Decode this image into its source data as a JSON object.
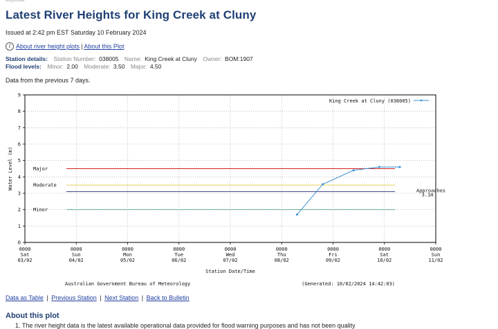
{
  "product_id": "IDQ65398",
  "title": "Latest River Heights for King Creek at Cluny",
  "issued": "Issued at 2:42 pm EST Saturday 10 February 2024",
  "top_links": {
    "about_heights": "About river height plots",
    "about_plot": "About this Plot",
    "separator": "|"
  },
  "station": {
    "heading": "Station details:",
    "number_label": "Station Number:",
    "number": "038005",
    "name_label": "Name:",
    "name": "King Creek at Cluny",
    "owner_label": "Owner:",
    "owner": "BOM:1907"
  },
  "flood": {
    "heading": "Flood levels:",
    "minor_label": "Minor:",
    "minor": "2.00",
    "moderate_label": "Moderate:",
    "moderate": "3.50",
    "major_label": "Major:",
    "major": "4.50"
  },
  "period_note": "Data from the previous 7 days.",
  "chart_data": {
    "type": "line",
    "ylabel": "Water Level (m)",
    "xlabel": "Station Date/Time",
    "ylim": [
      0,
      9
    ],
    "yticks": [
      "0",
      "1",
      "2",
      "3",
      "4",
      "5",
      "6",
      "7",
      "8",
      "9"
    ],
    "grid": true,
    "legend_position": "top-right",
    "x_ticks": [
      {
        "time": "0000",
        "day": "Sat",
        "date": "03/02"
      },
      {
        "time": "0000",
        "day": "Sun",
        "date": "04/02"
      },
      {
        "time": "0000",
        "day": "Mon",
        "date": "05/02"
      },
      {
        "time": "0000",
        "day": "Tue",
        "date": "06/02"
      },
      {
        "time": "0000",
        "day": "Wed",
        "date": "07/02"
      },
      {
        "time": "0000",
        "day": "Thu",
        "date": "08/02"
      },
      {
        "time": "0000",
        "day": "Fri",
        "date": "09/02"
      },
      {
        "time": "0000",
        "day": "Sat",
        "date": "10/02"
      },
      {
        "time": "0000",
        "day": "Sun",
        "date": "11/02"
      }
    ],
    "series": [
      {
        "name": "King Creek at Cluny (038005)",
        "color": "#3a8fd0",
        "points": [
          {
            "day": 5.3,
            "value": 1.7
          },
          {
            "day": 5.8,
            "value": 3.55
          },
          {
            "day": 6.4,
            "value": 4.4
          },
          {
            "day": 6.9,
            "value": 4.6
          },
          {
            "day": 7.3,
            "value": 4.6
          }
        ]
      }
    ],
    "threshold_lines": [
      {
        "label": "Major",
        "value": 4.5,
        "color": "#d42020"
      },
      {
        "label": "Moderate",
        "value": 3.5,
        "color": "#e8d060"
      },
      {
        "label": "Minor",
        "value": 2.0,
        "color": "#5fb08a"
      }
    ],
    "approach_line": {
      "label1": "Approaches",
      "label2": "3.1m",
      "value": 3.1,
      "color": "#3a3f8a"
    },
    "footer_left": "Australian Government Bureau of Meteorology",
    "footer_right": "(Generated: 10/02/2024 14:42:03)"
  },
  "bottom_links": {
    "table": "Data as Table",
    "prev": "Previous Station",
    "next": "Next Station",
    "back": "Back to Bulletin",
    "separator": "|"
  },
  "about": {
    "heading": "About this plot",
    "item1": "1. The river height data is the latest available operational data provided for flood warning purposes and has not been quality"
  }
}
